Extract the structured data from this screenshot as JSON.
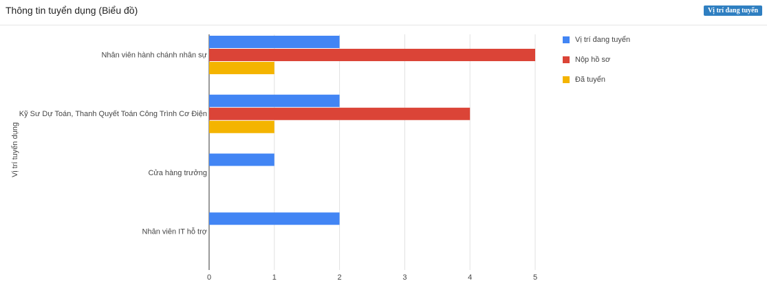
{
  "panel": {
    "title": "Thông tin tuyển dụng (Biểu đồ)",
    "button": "Vị trí đang tuyển"
  },
  "chart_data": {
    "type": "bar",
    "y_label": "Vị trí tuyển dụng",
    "categories": [
      "Nhân viên hành chánh nhân sự",
      "Kỹ Sư Dự Toán, Thanh Quyết Toán Công Trình Cơ Điện",
      "Cửa hàng trưởng",
      "Nhân viên IT hỗ trợ"
    ],
    "series": [
      {
        "name": "Vị trí đang tuyển",
        "color": "#4285f4",
        "values": [
          2,
          2,
          1,
          2
        ]
      },
      {
        "name": "Nộp hồ sơ",
        "color": "#db4437",
        "values": [
          5,
          4,
          0,
          0
        ]
      },
      {
        "name": "Đã tuyển",
        "color": "#f4b400",
        "values": [
          1,
          1,
          0,
          0
        ]
      }
    ],
    "xlim": [
      0,
      5
    ],
    "xticks": [
      0,
      1,
      2,
      3,
      4,
      5
    ],
    "grid": true,
    "legend": "right"
  }
}
